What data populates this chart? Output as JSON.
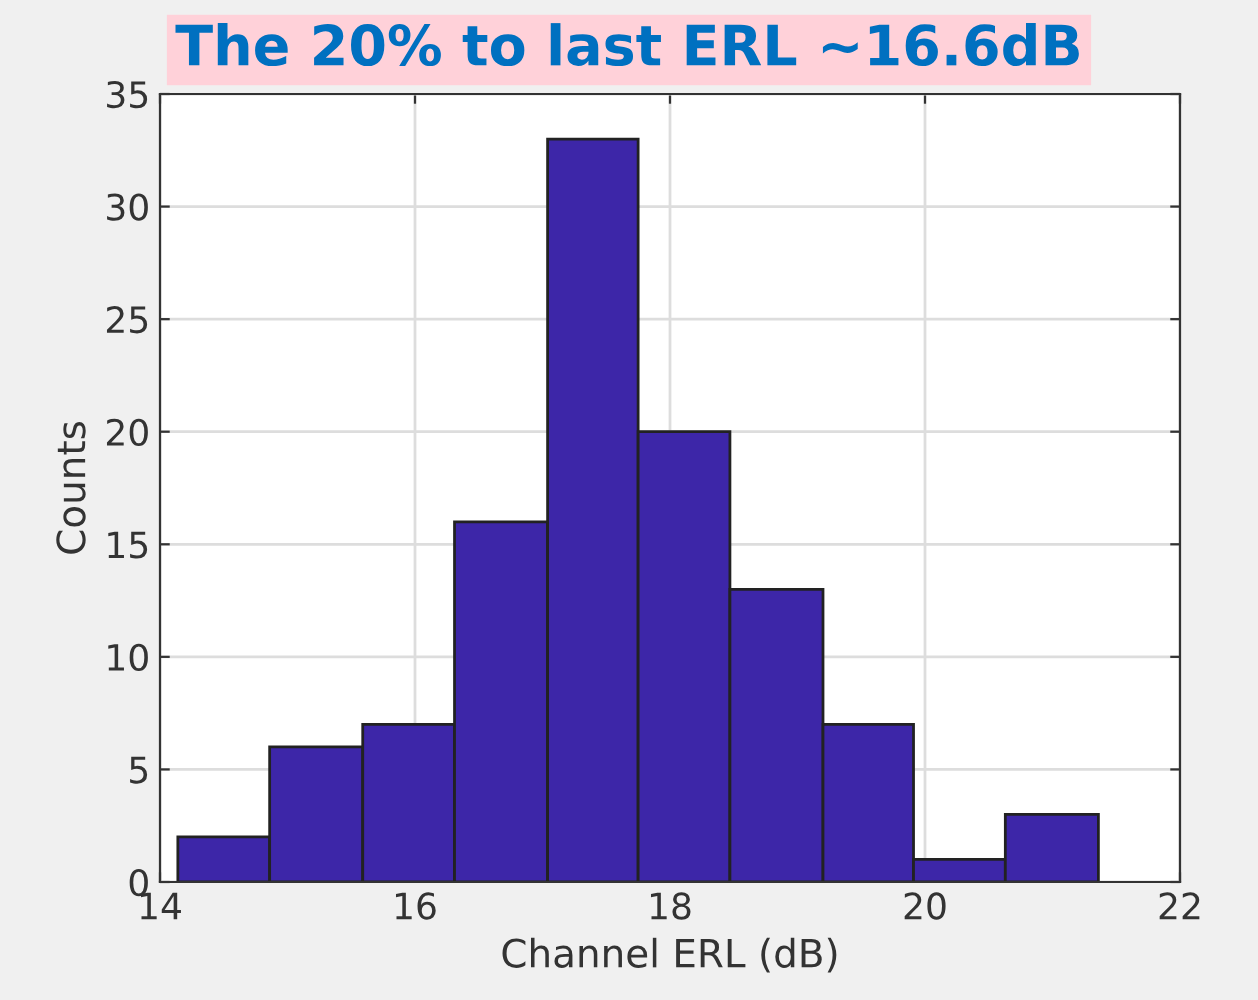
{
  "chart_data": {
    "type": "histogram",
    "title": "The 20% to last ERL ~16.6dB",
    "xlabel": "Channel ERL (dB)",
    "ylabel": "Counts",
    "bins": [
      14.14,
      14.86,
      15.59,
      16.31,
      17.04,
      17.75,
      18.47,
      19.2,
      19.91,
      20.63,
      21.36
    ],
    "values": [
      2,
      6,
      7,
      16,
      33,
      20,
      13,
      7,
      1,
      3
    ],
    "color": "#3d26a8",
    "xlim": [
      14,
      22
    ],
    "xticks": [
      14,
      16,
      18,
      20,
      22
    ],
    "ylim": [
      0,
      35
    ],
    "yticks": [
      0,
      5,
      10,
      15,
      20,
      25,
      30,
      35
    ],
    "grid": true
  }
}
